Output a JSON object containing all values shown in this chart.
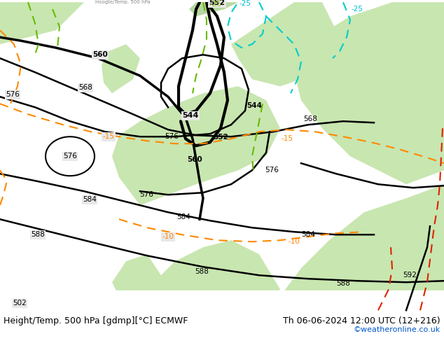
{
  "title_left": "Height/Temp. 500 hPa [gdmp][°C] ECMWF",
  "title_right": "Th 06-06-2024 12:00 UTC (12+216)",
  "credit": "©weatheronline.co.uk",
  "bg_color": "#e8e8e8",
  "land_color_light": "#c8e6b0",
  "land_color_dark": "#a0c880",
  "sea_color": "#dcdcdc",
  "contour_color_black": "#000000",
  "contour_color_orange": "#ff8800",
  "contour_color_cyan": "#00cccc",
  "contour_color_green": "#66bb00",
  "label_color_black": "#000000",
  "label_color_cyan": "#00bbcc",
  "label_color_green": "#88cc00",
  "label_color_orange": "#ff8800",
  "label_color_red": "#dd0000",
  "bottom_bar_color": "#ffffff",
  "title_fontsize": 9,
  "credit_fontsize": 8,
  "credit_color": "#0055cc"
}
